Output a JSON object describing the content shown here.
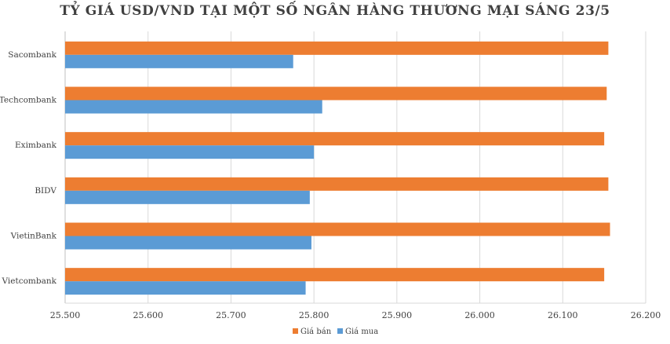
{
  "chart_data": {
    "type": "bar",
    "orientation": "horizontal",
    "title": "TỶ GIÁ USD/VND TẠI MỘT SỐ NGÂN HÀNG THƯƠNG MẠI SÁNG 23/5",
    "xlabel": "",
    "ylabel": "",
    "categories": [
      "Sacombank",
      "Techcombank",
      "Eximbank",
      "BIDV",
      "VietinBank",
      "Vietcombank"
    ],
    "series": [
      {
        "name": "Giá bán",
        "color": "#ED7D31",
        "values": [
          26155,
          26153,
          26150,
          26155,
          26157,
          26150
        ]
      },
      {
        "name": "Giá mua",
        "color": "#5B9BD5",
        "values": [
          25775,
          25810,
          25800,
          25795,
          25797,
          25790
        ]
      }
    ],
    "xlim": [
      25500,
      26200
    ],
    "xticks": [
      25500,
      25600,
      25700,
      25800,
      25900,
      26000,
      26100,
      26200
    ],
    "xtick_labels": [
      "25.500",
      "25.600",
      "25.700",
      "25.800",
      "25.900",
      "26.000",
      "26.100",
      "26.200"
    ],
    "grid": "vertical",
    "legend_position": "bottom"
  }
}
